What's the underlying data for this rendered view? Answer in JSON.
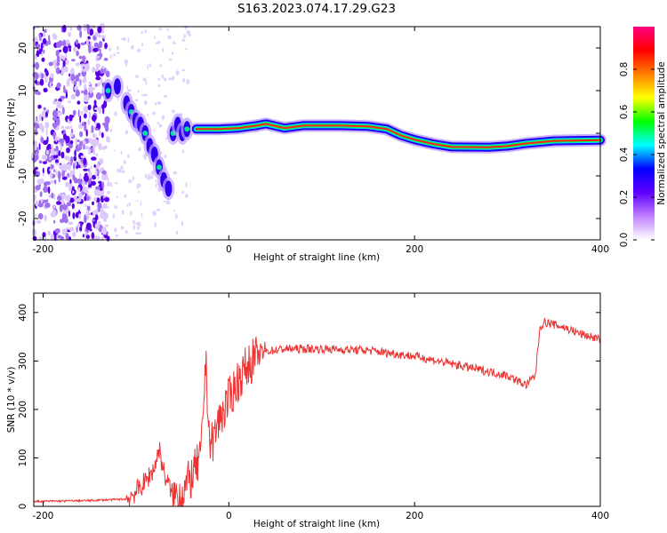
{
  "title": "S163.2023.074.17.29.G23",
  "chart_data": [
    {
      "type": "heatmap",
      "xlabel": "Height of straight line (km)",
      "ylabel": "Frequency (Hz)",
      "xlim": [
        -210,
        400
      ],
      "ylim": [
        -25,
        25
      ],
      "xticks": [
        -200,
        0,
        200,
        400
      ],
      "yticks": [
        -20,
        -10,
        0,
        10,
        20
      ],
      "xtick_labels": [
        "-200",
        "0",
        "200",
        "400"
      ],
      "ytick_labels": [
        "-20",
        "-10",
        "0",
        "10",
        "20"
      ],
      "colorbar": {
        "label": "Normalized spectral amplitude",
        "range": [
          0,
          1
        ],
        "ticks": [
          0.0,
          0.2,
          0.4,
          0.6,
          0.8
        ],
        "tick_labels": [
          "0.0",
          "0.2",
          "0.4",
          "0.6",
          "0.8"
        ],
        "colors": [
          "#ffffff",
          "#c080ff",
          "#6000ff",
          "#0000ff",
          "#00ffff",
          "#00ff00",
          "#ffff00",
          "#ff8000",
          "#ff0000",
          "#ff0080"
        ]
      },
      "track": {
        "x": [
          -35,
          -10,
          10,
          30,
          40,
          60,
          80,
          120,
          150,
          170,
          185,
          200,
          220,
          240,
          280,
          300,
          320,
          350,
          400
        ],
        "y": [
          1.0,
          1.0,
          1.2,
          1.8,
          2.2,
          1.2,
          1.8,
          1.8,
          1.6,
          1.0,
          -0.5,
          -1.5,
          -2.5,
          -3.2,
          -3.3,
          -3.0,
          -2.4,
          -1.8,
          -1.6
        ]
      },
      "dispersed_blobs": {
        "x": [
          -130,
          -120,
          -110,
          -105,
          -100,
          -95,
          -90,
          -85,
          -80,
          -75,
          -70,
          -65,
          -60,
          -55,
          -50,
          -45
        ],
        "y": [
          10,
          11,
          7,
          5,
          3,
          2,
          0,
          -3,
          -5,
          -8,
          -11,
          -13,
          0,
          2,
          0,
          1
        ]
      },
      "noise_region": {
        "x": [
          -210,
          -130
        ],
        "y": [
          -25,
          25
        ]
      }
    },
    {
      "type": "line",
      "xlabel": "Height of straight line (km)",
      "ylabel": "SNR (10 * v/v)",
      "xlim": [
        -210,
        400
      ],
      "ylim": [
        0,
        440
      ],
      "xticks": [
        -200,
        0,
        200,
        400
      ],
      "yticks": [
        0,
        100,
        200,
        300,
        400
      ],
      "xtick_labels": [
        "-200",
        "0",
        "200",
        "400"
      ],
      "ytick_labels": [
        "0",
        "100",
        "200",
        "300",
        "400"
      ],
      "series": [
        {
          "color": "#ee3333",
          "x": [
            -210,
            -150,
            -110,
            -100,
            -90,
            -80,
            -75,
            -70,
            -60,
            -50,
            -40,
            -30,
            -25,
            -20,
            -10,
            0,
            10,
            20,
            30,
            40,
            60,
            100,
            150,
            200,
            250,
            300,
            320,
            330,
            335,
            340,
            360,
            380,
            400
          ],
          "y": [
            10,
            12,
            15,
            30,
            50,
            80,
            120,
            70,
            20,
            30,
            60,
            100,
            300,
            120,
            180,
            220,
            260,
            290,
            310,
            320,
            325,
            325,
            322,
            310,
            290,
            270,
            250,
            270,
            370,
            380,
            370,
            355,
            345
          ]
        }
      ]
    }
  ]
}
